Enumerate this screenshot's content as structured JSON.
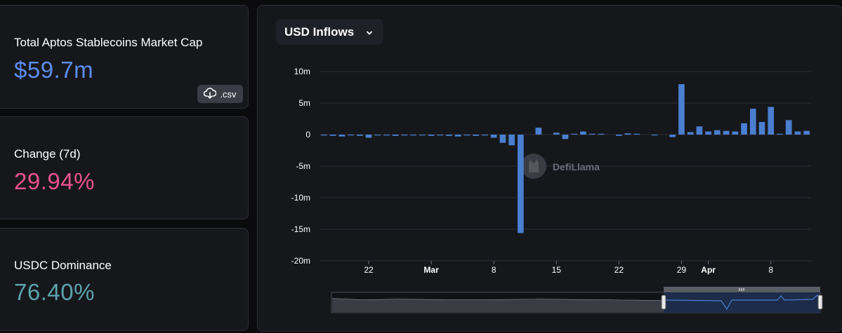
{
  "stats": {
    "market_cap": {
      "label": "Total Aptos Stablecoins Market Cap",
      "value": "$59.7m",
      "color": "#5b8def"
    },
    "change": {
      "label": "Change (7d)",
      "value": "29.94%",
      "color": "#e9528f"
    },
    "dominance": {
      "label": "USDC Dominance",
      "value": "76.40%",
      "color": "#5aa4ae"
    },
    "csv_label": ".csv"
  },
  "dropdown": {
    "label": "USD Inflows"
  },
  "watermark": "DefiLlama",
  "colors": {
    "bar": "#4a7fd0",
    "grid": "#2a2c33",
    "brush_fill": "#1c2c4a"
  },
  "chart_data": {
    "type": "bar",
    "title": "",
    "xlabel": "",
    "ylabel": "",
    "ylim": [
      -20,
      10
    ],
    "y_unit": "m",
    "y_ticks": [
      {
        "value": 10,
        "label": "10m"
      },
      {
        "value": 5,
        "label": "5m"
      },
      {
        "value": 0,
        "label": "0"
      },
      {
        "value": -5,
        "label": "-5m"
      },
      {
        "value": -10,
        "label": "-10m"
      },
      {
        "value": -15,
        "label": "-15m"
      },
      {
        "value": -20,
        "label": "-20m"
      }
    ],
    "x_ticks": [
      {
        "day": 22,
        "label": "22",
        "bold": false
      },
      {
        "day": 29,
        "label": "Mar",
        "bold": true
      },
      {
        "day": 36,
        "label": "8",
        "bold": false
      },
      {
        "day": 43,
        "label": "15",
        "bold": false
      },
      {
        "day": 50,
        "label": "22",
        "bold": false
      },
      {
        "day": 57,
        "label": "29",
        "bold": false
      },
      {
        "day": 60,
        "label": "Apr",
        "bold": true
      },
      {
        "day": 67,
        "label": "8",
        "bold": false
      }
    ],
    "series": [
      {
        "x": [
          17,
          18,
          19,
          20,
          21,
          22,
          23,
          24,
          25,
          26,
          27,
          28,
          29,
          30,
          31,
          32,
          33,
          34,
          35,
          36,
          37,
          38,
          39,
          40,
          41,
          42,
          43,
          44,
          45,
          46,
          47,
          48,
          49,
          50,
          51,
          52,
          53,
          54,
          55,
          56,
          57,
          58,
          59,
          60,
          61,
          62,
          63,
          64,
          65,
          66,
          67,
          68,
          69,
          70,
          71
        ],
        "values": [
          -0.1,
          -0.2,
          -0.3,
          -0.1,
          -0.2,
          -0.5,
          -0.1,
          -0.1,
          -0.2,
          -0.1,
          -0.1,
          -0.1,
          -0.2,
          -0.1,
          -0.2,
          -0.3,
          -0.1,
          -0.2,
          -0.1,
          -0.5,
          -1.3,
          -1.7,
          -15.6,
          0.0,
          1.1,
          0.0,
          0.3,
          -0.7,
          0.1,
          0.5,
          0.1,
          0.1,
          0.0,
          -0.2,
          0.2,
          0.1,
          0.0,
          -0.1,
          0.0,
          -0.4,
          8.0,
          0.4,
          1.3,
          0.5,
          0.7,
          0.6,
          0.5,
          1.8,
          4.1,
          2.0,
          4.4,
          0.1,
          2.3,
          0.5,
          0.6
        ]
      }
    ]
  }
}
